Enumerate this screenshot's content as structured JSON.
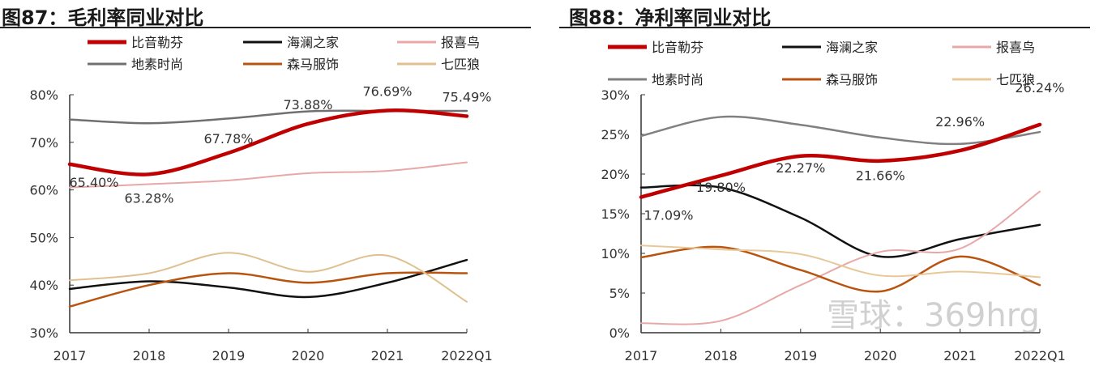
{
  "chart_data": [
    {
      "type": "line",
      "title": "图87：毛利率同业对比",
      "categories": [
        "2017",
        "2018",
        "2019",
        "2020",
        "2021",
        "2022Q1"
      ],
      "ylim": [
        30,
        80
      ],
      "yticks": [
        "30%",
        "40%",
        "50%",
        "60%",
        "70%",
        "80%"
      ],
      "yunit": "%",
      "grid": false,
      "legend_placement": "top",
      "series": [
        {
          "name": "比音勒芬",
          "color": "#c00000",
          "values": [
            65.4,
            63.28,
            67.78,
            73.88,
            76.69,
            75.49
          ],
          "labels": [
            "65.40%",
            "63.28%",
            "67.78%",
            "73.88%",
            "76.69%",
            "75.49%"
          ]
        },
        {
          "name": "海澜之家",
          "color": "#111111",
          "values": [
            39.2,
            40.8,
            39.5,
            37.5,
            40.5,
            45.3
          ]
        },
        {
          "name": "报喜鸟",
          "color": "#e8a8a8",
          "values": [
            60.5,
            61.2,
            62.0,
            63.5,
            64.0,
            65.8
          ]
        },
        {
          "name": "地素时尚",
          "color": "#707070",
          "values": [
            74.8,
            74.0,
            75.0,
            76.5,
            76.6,
            76.6
          ]
        },
        {
          "name": "森马服饰",
          "color": "#b85410",
          "values": [
            35.5,
            40.0,
            42.5,
            40.5,
            42.5,
            42.5
          ]
        },
        {
          "name": "七匹狼",
          "color": "#e0c090",
          "values": [
            41.0,
            42.5,
            46.8,
            42.8,
            46.2,
            36.5
          ]
        }
      ]
    },
    {
      "type": "line",
      "title": "图88：净利率同业对比",
      "categories": [
        "2017",
        "2018",
        "2019",
        "2020",
        "2021",
        "2022Q1"
      ],
      "ylim": [
        0,
        30
      ],
      "yticks": [
        "0%",
        "5%",
        "10%",
        "15%",
        "20%",
        "25%",
        "30%"
      ],
      "yunit": "%",
      "grid": false,
      "legend_placement": "top",
      "series": [
        {
          "name": "比音勒芬",
          "color": "#c00000",
          "values": [
            17.09,
            19.8,
            22.27,
            21.66,
            22.96,
            26.24
          ],
          "labels": [
            "17.09%",
            "19.80%",
            "22.27%",
            "21.66%",
            "22.96%",
            "26.24%"
          ]
        },
        {
          "name": "海澜之家",
          "color": "#111111",
          "values": [
            18.3,
            18.3,
            14.5,
            9.6,
            11.8,
            13.6
          ]
        },
        {
          "name": "报喜鸟",
          "color": "#e8a8a8",
          "values": [
            1.2,
            1.5,
            6.0,
            10.2,
            10.6,
            17.8
          ]
        },
        {
          "name": "地素时尚",
          "color": "#808080",
          "values": [
            24.8,
            27.2,
            26.2,
            24.6,
            23.8,
            25.3
          ]
        },
        {
          "name": "森马服饰",
          "color": "#b85410",
          "values": [
            9.5,
            10.8,
            7.9,
            5.2,
            9.6,
            6.0
          ]
        },
        {
          "name": "七匹狼",
          "color": "#e8c898",
          "values": [
            11.0,
            10.5,
            9.9,
            7.2,
            7.7,
            7.0
          ]
        }
      ]
    }
  ],
  "watermark": "雪球：369hrg"
}
